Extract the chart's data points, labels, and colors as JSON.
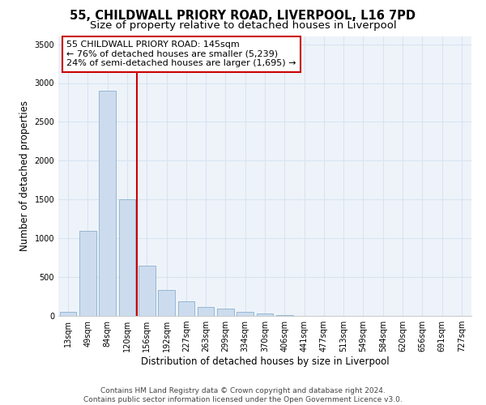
{
  "title_line1": "55, CHILDWALL PRIORY ROAD, LIVERPOOL, L16 7PD",
  "title_line2": "Size of property relative to detached houses in Liverpool",
  "xlabel": "Distribution of detached houses by size in Liverpool",
  "ylabel": "Number of detached properties",
  "bar_labels": [
    "13sqm",
    "49sqm",
    "84sqm",
    "120sqm",
    "156sqm",
    "192sqm",
    "227sqm",
    "263sqm",
    "299sqm",
    "334sqm",
    "370sqm",
    "406sqm",
    "441sqm",
    "477sqm",
    "513sqm",
    "549sqm",
    "584sqm",
    "620sqm",
    "656sqm",
    "691sqm",
    "727sqm"
  ],
  "bar_values": [
    50,
    1100,
    2900,
    1500,
    650,
    330,
    190,
    110,
    90,
    55,
    30,
    10,
    5,
    4,
    3,
    0,
    0,
    0,
    0,
    0,
    0
  ],
  "bar_color": "#ccdcee",
  "bar_edge_color": "#8ab0cc",
  "vline_color": "#cc0000",
  "vline_position": 3.5,
  "annotation_text": "55 CHILDWALL PRIORY ROAD: 145sqm\n← 76% of detached houses are smaller (5,239)\n24% of semi-detached houses are larger (1,695) →",
  "annotation_box_color": "#cc0000",
  "annotation_bg": "#ffffff",
  "ylim": [
    0,
    3600
  ],
  "yticks": [
    0,
    500,
    1000,
    1500,
    2000,
    2500,
    3000,
    3500
  ],
  "grid_color": "#d8e4f0",
  "background_color": "#eef3fa",
  "footer_line1": "Contains HM Land Registry data © Crown copyright and database right 2024.",
  "footer_line2": "Contains public sector information licensed under the Open Government Licence v3.0.",
  "title_fontsize": 10.5,
  "subtitle_fontsize": 9.5,
  "axis_label_fontsize": 8.5,
  "tick_fontsize": 7,
  "annotation_fontsize": 8,
  "footer_fontsize": 6.5
}
